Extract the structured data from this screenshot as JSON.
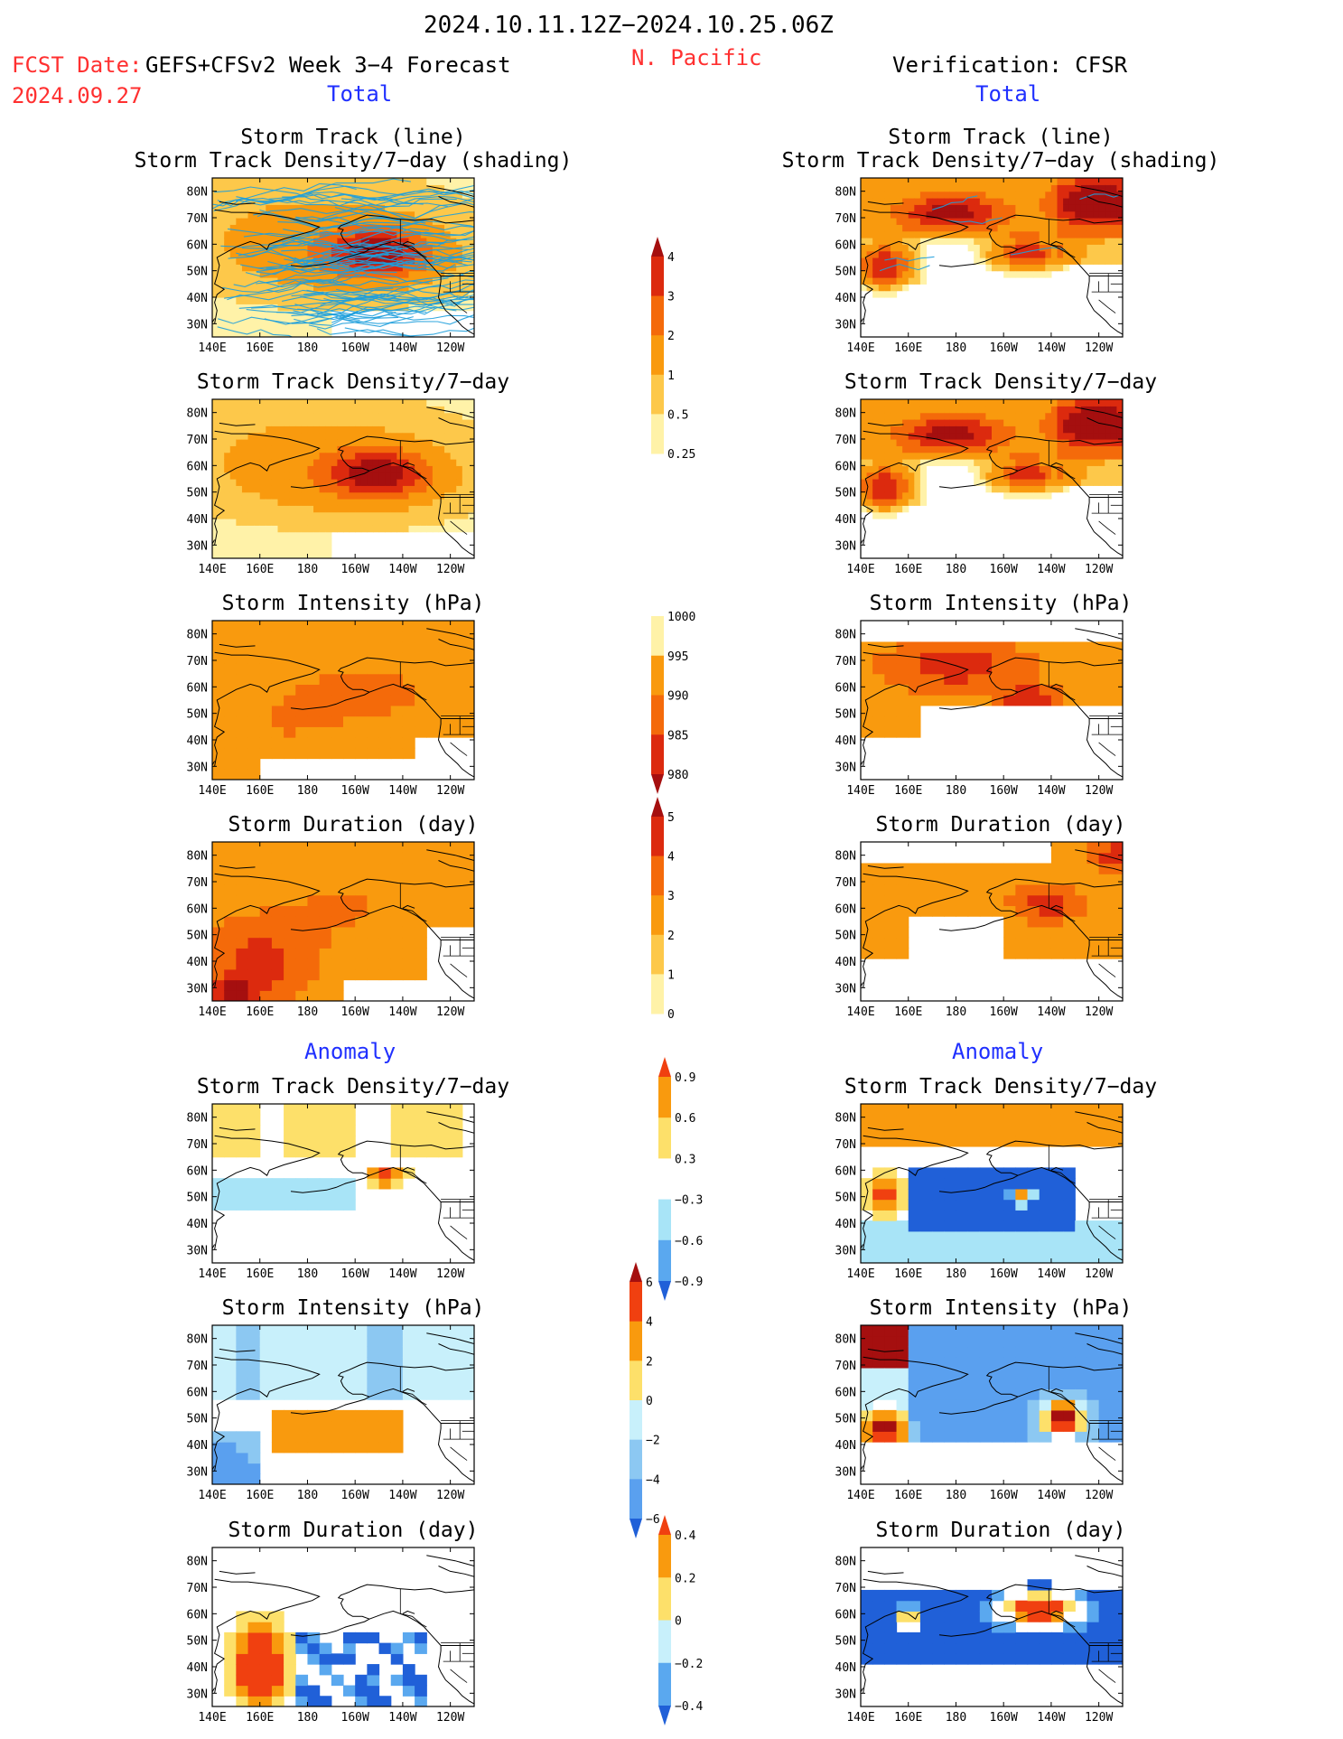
{
  "header": {
    "period": "2024.10.11.12Z−2024.10.25.06Z",
    "fcst_label": "FCST Date:",
    "fcst_date": "2024.09.27",
    "model": "GEFS+CFSv2 Week 3−4 Forecast",
    "region": "N. Pacific",
    "verification": "Verification: CFSR",
    "total_left": "Total",
    "total_right": "Total",
    "anomaly_left": "Anomaly",
    "anomaly_right": "Anomaly"
  },
  "colors": {
    "text": "#000000",
    "red": "#ff3030",
    "blue": "#2030ff",
    "track": "#1e9fdc",
    "coast": "#000000"
  },
  "chart_data": {
    "type": "heatmap",
    "x_ticks": [
      "140E",
      "160E",
      "180",
      "160W",
      "140W",
      "120W"
    ],
    "y_ticks": [
      "80N",
      "70N",
      "60N",
      "50N",
      "40N",
      "30N"
    ],
    "lon_range": [
      140,
      250
    ],
    "lat_range": [
      25,
      85
    ],
    "panels": [
      {
        "column": "forecast",
        "row": 1,
        "title": [
          "Storm Track (line)",
          "Storm Track Density/7−day (shading)"
        ],
        "field": "density",
        "tracks": true
      },
      {
        "column": "forecast",
        "row": 2,
        "title": [
          "Storm Track Density/7−day"
        ],
        "field": "density"
      },
      {
        "column": "forecast",
        "row": 3,
        "title": [
          "Storm Intensity (hPa)"
        ],
        "field": "intensity"
      },
      {
        "column": "forecast",
        "row": 4,
        "title": [
          "Storm Duration (day)"
        ],
        "field": "duration"
      },
      {
        "column": "forecast",
        "row": 5,
        "title": [
          "Storm Track Density/7−day"
        ],
        "field": "density_anomaly"
      },
      {
        "column": "forecast",
        "row": 6,
        "title": [
          "Storm Intensity (hPa)"
        ],
        "field": "intensity_anomaly"
      },
      {
        "column": "forecast",
        "row": 7,
        "title": [
          "Storm Duration (day)"
        ],
        "field": "duration_anomaly"
      },
      {
        "column": "verification",
        "row": 1,
        "title": [
          "Storm Track (line)",
          "Storm Track Density/7−day (shading)"
        ],
        "field": "density",
        "tracks": true
      },
      {
        "column": "verification",
        "row": 2,
        "title": [
          "Storm Track Density/7−day"
        ],
        "field": "density"
      },
      {
        "column": "verification",
        "row": 3,
        "title": [
          "Storm Intensity (hPa)"
        ],
        "field": "intensity"
      },
      {
        "column": "verification",
        "row": 4,
        "title": [
          "Storm Duration (day)"
        ],
        "field": "duration"
      },
      {
        "column": "verification",
        "row": 5,
        "title": [
          "Storm Track Density/7−day"
        ],
        "field": "density_anomaly"
      },
      {
        "column": "verification",
        "row": 6,
        "title": [
          "Storm Intensity (hPa)"
        ],
        "field": "intensity_anomaly"
      },
      {
        "column": "verification",
        "row": 7,
        "title": [
          "Storm Duration (day)"
        ],
        "field": "duration_anomaly"
      }
    ],
    "colorbars": [
      {
        "field": "density",
        "labels": [
          "4",
          "3",
          "2",
          "1",
          "0.5",
          "0.25"
        ],
        "colors": [
          "#a50f0f",
          "#dc2a0e",
          "#f46a0a",
          "#f99a0e",
          "#fdc84a",
          "#fff2a8"
        ],
        "arrow_top": true,
        "arrow_bottom": false
      },
      {
        "field": "intensity",
        "labels": [
          "1000",
          "995",
          "990",
          "985",
          "980"
        ],
        "colors": [
          "#fff2a8",
          "#f99a0e",
          "#f46a0a",
          "#dc2a0e",
          "#a50f0f"
        ],
        "arrow_top": false,
        "arrow_bottom": true
      },
      {
        "field": "duration",
        "labels": [
          "5",
          "4",
          "3",
          "2",
          "1",
          "0"
        ],
        "colors": [
          "#a50f0f",
          "#dc2a0e",
          "#f46a0a",
          "#f99a0e",
          "#fdc84a",
          "#fff2a8"
        ],
        "arrow_top": true,
        "arrow_bottom": false
      },
      {
        "field": "density_anomaly",
        "labels": [
          "0.9",
          "0.6",
          "0.3",
          "−0.3",
          "−0.6",
          "−0.9"
        ],
        "colors": [
          "#f04010",
          "#f99a0e",
          "#fde06a",
          "#ffffff",
          "#a8e4f7",
          "#5aa8ef",
          "#2060d8"
        ],
        "arrow_top": true,
        "arrow_bottom": true
      },
      {
        "field": "intensity_anomaly",
        "labels": [
          "6",
          "4",
          "2",
          "0",
          "−2",
          "−4",
          "−6"
        ],
        "colors": [
          "#a50f0f",
          "#f04010",
          "#f99a0e",
          "#fde06a",
          "#c8f0fb",
          "#8cc8f2",
          "#5aa0ef",
          "#2060d8"
        ],
        "arrow_top": true,
        "arrow_bottom": true
      },
      {
        "field": "duration_anomaly",
        "labels": [
          "0.4",
          "0.2",
          "0",
          "−0.2",
          "−0.4"
        ],
        "colors": [
          "#f04010",
          "#f99a0e",
          "#fde06a",
          "#c8f0fb",
          "#5aa8ef",
          "#2060d8"
        ],
        "arrow_top": true,
        "arrow_bottom": true
      }
    ]
  }
}
